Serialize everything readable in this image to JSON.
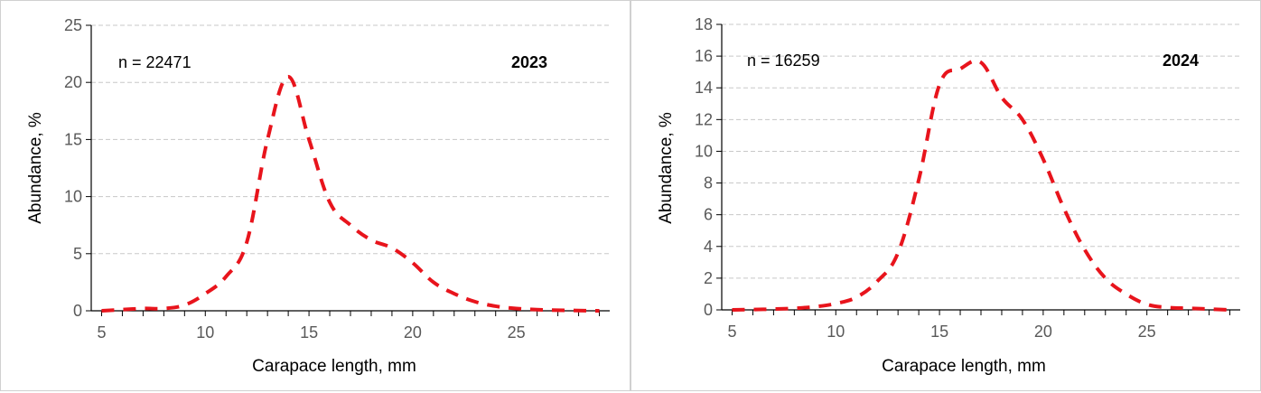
{
  "colors": {
    "series": "#e8141c",
    "grid": "#c8c8c8",
    "axis": "#000000",
    "tick_text": "#595959"
  },
  "chart_data": [
    {
      "type": "line",
      "title": "",
      "year_label": "2023",
      "n_label": "n = 22471",
      "xlabel": "Carapace length, mm",
      "ylabel": "Abundance, %",
      "xlim": [
        4.5,
        29.5
      ],
      "ylim": [
        0,
        25
      ],
      "xticks": [
        5,
        10,
        15,
        20,
        25
      ],
      "yticks": [
        0,
        5,
        10,
        15,
        20,
        25
      ],
      "grid": true,
      "line_style": "dashed",
      "series": [
        {
          "x": [
            5,
            6,
            7,
            8,
            9,
            10,
            11,
            12,
            13,
            14,
            15,
            16,
            17,
            18,
            19,
            20,
            21,
            22,
            23,
            24,
            25,
            26,
            27,
            28,
            29
          ],
          "y": [
            0,
            0.1,
            0.2,
            0.2,
            0.5,
            1.5,
            3,
            6,
            15,
            20.5,
            15,
            9.5,
            7.5,
            6.2,
            5.5,
            4.2,
            2.5,
            1.5,
            0.8,
            0.4,
            0.2,
            0.1,
            0.05,
            0.02,
            0
          ]
        }
      ]
    },
    {
      "type": "line",
      "title": "",
      "year_label": "2024",
      "n_label": "n = 16259",
      "xlabel": "Carapace length, mm",
      "ylabel": "Abundance, %",
      "xlim": [
        4.5,
        29.5
      ],
      "ylim": [
        0,
        18
      ],
      "xticks": [
        5,
        10,
        15,
        20,
        25
      ],
      "yticks": [
        0,
        2,
        4,
        6,
        8,
        10,
        12,
        14,
        16,
        18
      ],
      "grid": true,
      "line_style": "dashed",
      "series": [
        {
          "x": [
            5,
            6,
            7,
            8,
            9,
            10,
            11,
            12,
            13,
            14,
            15,
            16,
            17,
            18,
            19,
            20,
            21,
            22,
            23,
            24,
            25,
            26,
            27,
            28,
            29
          ],
          "y": [
            0,
            0.02,
            0.05,
            0.1,
            0.2,
            0.4,
            0.8,
            1.8,
            3.6,
            8.2,
            14.2,
            15.2,
            15.6,
            13.4,
            12,
            9.5,
            6.4,
            3.8,
            2,
            1,
            0.35,
            0.15,
            0.1,
            0.05,
            0
          ]
        }
      ]
    }
  ]
}
